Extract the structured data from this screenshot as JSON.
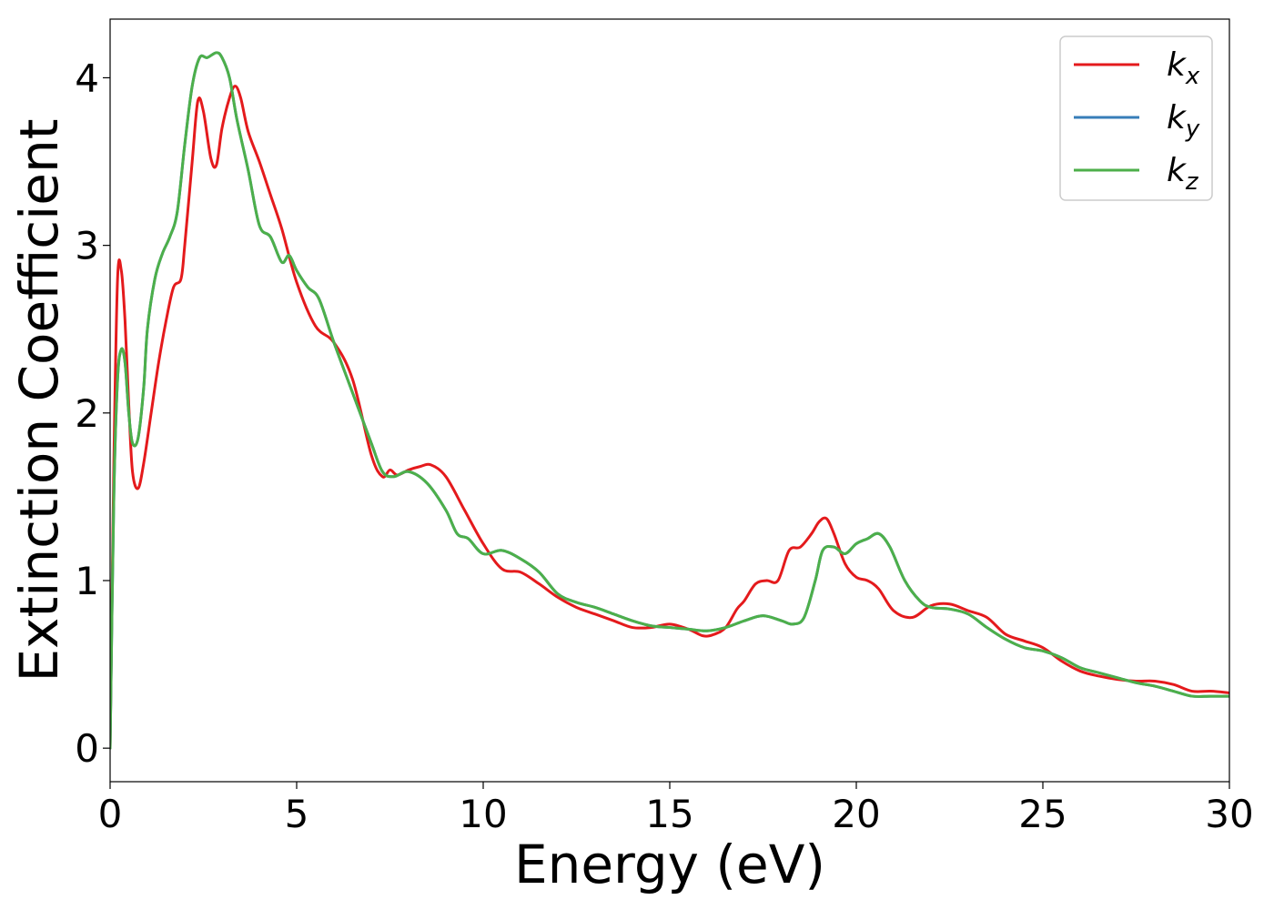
{
  "chart_data": {
    "type": "line",
    "xlabel": "Energy (eV)",
    "ylabel": "Extinction Coefficient",
    "xlim": [
      0,
      30
    ],
    "ylim": [
      -0.2,
      4.35
    ],
    "xticks": [
      0,
      5,
      10,
      15,
      20,
      25,
      30
    ],
    "yticks": [
      0,
      1,
      2,
      3,
      4
    ],
    "legend_position": "top-right",
    "grid": false,
    "series": [
      {
        "name": "k_x",
        "label_main": "k",
        "label_sub": "x",
        "color": "#e41a1c",
        "x": [
          0,
          0.1,
          0.2,
          0.3,
          0.4,
          0.5,
          0.6,
          0.75,
          0.9,
          1.1,
          1.3,
          1.5,
          1.7,
          1.9,
          2.0,
          2.2,
          2.35,
          2.5,
          2.7,
          2.85,
          3.0,
          3.2,
          3.35,
          3.5,
          3.7,
          4.0,
          4.3,
          4.6,
          5.0,
          5.5,
          6.0,
          6.5,
          7.0,
          7.3,
          7.5,
          7.7,
          8.0,
          8.3,
          8.6,
          9.0,
          9.5,
          10.0,
          10.5,
          11.0,
          11.5,
          12.0,
          12.5,
          13.0,
          13.5,
          14.0,
          14.5,
          15.0,
          15.5,
          15.9,
          16.2,
          16.5,
          16.8,
          17.0,
          17.3,
          17.6,
          17.9,
          18.2,
          18.5,
          18.8,
          19.0,
          19.2,
          19.4,
          19.7,
          20.0,
          20.3,
          20.6,
          21.0,
          21.5,
          22.0,
          22.5,
          23.0,
          23.5,
          24.0,
          24.5,
          25.0,
          25.5,
          26.0,
          26.5,
          27.0,
          27.5,
          28.0,
          28.5,
          29.0,
          29.5,
          30.0
        ],
        "y": [
          0.0,
          1.7,
          2.8,
          2.85,
          2.55,
          2.05,
          1.65,
          1.55,
          1.7,
          2.0,
          2.3,
          2.55,
          2.75,
          2.8,
          3.0,
          3.5,
          3.86,
          3.8,
          3.52,
          3.48,
          3.7,
          3.88,
          3.95,
          3.88,
          3.68,
          3.5,
          3.3,
          3.1,
          2.78,
          2.52,
          2.42,
          2.2,
          1.75,
          1.62,
          1.66,
          1.63,
          1.66,
          1.68,
          1.69,
          1.62,
          1.42,
          1.22,
          1.07,
          1.05,
          0.98,
          0.9,
          0.84,
          0.8,
          0.76,
          0.72,
          0.72,
          0.74,
          0.71,
          0.67,
          0.68,
          0.72,
          0.83,
          0.88,
          0.98,
          1.0,
          1.0,
          1.18,
          1.2,
          1.28,
          1.35,
          1.37,
          1.28,
          1.1,
          1.02,
          1.0,
          0.95,
          0.82,
          0.78,
          0.85,
          0.86,
          0.82,
          0.78,
          0.68,
          0.64,
          0.6,
          0.52,
          0.46,
          0.43,
          0.41,
          0.4,
          0.4,
          0.38,
          0.34,
          0.34,
          0.33
        ]
      },
      {
        "name": "k_y",
        "label_main": "k",
        "label_sub": "y",
        "color": "#377eb8",
        "x": [
          0,
          0.1,
          0.2,
          0.3,
          0.4,
          0.5,
          0.6,
          0.75,
          0.9,
          1.0,
          1.2,
          1.4,
          1.6,
          1.8,
          2.0,
          2.2,
          2.4,
          2.6,
          2.85,
          3.0,
          3.2,
          3.4,
          3.7,
          4.0,
          4.3,
          4.6,
          4.8,
          5.0,
          5.3,
          5.6,
          6.0,
          6.5,
          7.0,
          7.3,
          7.6,
          8.0,
          8.5,
          9.0,
          9.3,
          9.6,
          10.0,
          10.5,
          11.0,
          11.5,
          12.0,
          12.5,
          13.0,
          13.5,
          14.0,
          14.5,
          15.0,
          15.5,
          16.0,
          16.5,
          17.0,
          17.5,
          18.0,
          18.3,
          18.6,
          18.9,
          19.1,
          19.4,
          19.7,
          20.0,
          20.3,
          20.6,
          20.9,
          21.3,
          21.7,
          22.0,
          22.5,
          23.0,
          23.5,
          24.0,
          24.5,
          25.0,
          25.5,
          26.0,
          26.5,
          27.0,
          27.5,
          28.0,
          28.5,
          29.0,
          29.5,
          30.0
        ],
        "y": [
          0.0,
          1.5,
          2.2,
          2.38,
          2.3,
          2.0,
          1.82,
          1.85,
          2.15,
          2.5,
          2.8,
          2.95,
          3.05,
          3.2,
          3.6,
          3.95,
          4.12,
          4.12,
          4.15,
          4.12,
          4.0,
          3.75,
          3.45,
          3.12,
          3.05,
          2.9,
          2.94,
          2.85,
          2.75,
          2.68,
          2.42,
          2.12,
          1.82,
          1.65,
          1.62,
          1.65,
          1.58,
          1.42,
          1.28,
          1.25,
          1.16,
          1.18,
          1.13,
          1.05,
          0.92,
          0.87,
          0.84,
          0.8,
          0.76,
          0.73,
          0.72,
          0.71,
          0.7,
          0.72,
          0.76,
          0.79,
          0.76,
          0.74,
          0.78,
          1.0,
          1.18,
          1.2,
          1.16,
          1.22,
          1.25,
          1.28,
          1.2,
          1.0,
          0.88,
          0.84,
          0.83,
          0.8,
          0.72,
          0.65,
          0.6,
          0.58,
          0.54,
          0.48,
          0.45,
          0.42,
          0.39,
          0.37,
          0.34,
          0.31,
          0.31,
          0.31
        ]
      },
      {
        "name": "k_z",
        "label_main": "k",
        "label_sub": "z",
        "color": "#4daf4a",
        "x": [
          0,
          0.1,
          0.2,
          0.3,
          0.4,
          0.5,
          0.6,
          0.75,
          0.9,
          1.0,
          1.2,
          1.4,
          1.6,
          1.8,
          2.0,
          2.2,
          2.4,
          2.6,
          2.85,
          3.0,
          3.2,
          3.4,
          3.7,
          4.0,
          4.3,
          4.6,
          4.8,
          5.0,
          5.3,
          5.6,
          6.0,
          6.5,
          7.0,
          7.3,
          7.6,
          8.0,
          8.5,
          9.0,
          9.3,
          9.6,
          10.0,
          10.5,
          11.0,
          11.5,
          12.0,
          12.5,
          13.0,
          13.5,
          14.0,
          14.5,
          15.0,
          15.5,
          16.0,
          16.5,
          17.0,
          17.5,
          18.0,
          18.3,
          18.6,
          18.9,
          19.1,
          19.4,
          19.7,
          20.0,
          20.3,
          20.6,
          20.9,
          21.3,
          21.7,
          22.0,
          22.5,
          23.0,
          23.5,
          24.0,
          24.5,
          25.0,
          25.5,
          26.0,
          26.5,
          27.0,
          27.5,
          28.0,
          28.5,
          29.0,
          29.5,
          30.0
        ],
        "y": [
          0.0,
          1.5,
          2.2,
          2.38,
          2.3,
          2.0,
          1.82,
          1.85,
          2.15,
          2.5,
          2.8,
          2.95,
          3.05,
          3.2,
          3.6,
          3.95,
          4.12,
          4.12,
          4.15,
          4.12,
          4.0,
          3.75,
          3.45,
          3.12,
          3.05,
          2.9,
          2.94,
          2.85,
          2.75,
          2.68,
          2.42,
          2.12,
          1.82,
          1.65,
          1.62,
          1.65,
          1.58,
          1.42,
          1.28,
          1.25,
          1.16,
          1.18,
          1.13,
          1.05,
          0.92,
          0.87,
          0.84,
          0.8,
          0.76,
          0.73,
          0.72,
          0.71,
          0.7,
          0.72,
          0.76,
          0.79,
          0.76,
          0.74,
          0.78,
          1.0,
          1.18,
          1.2,
          1.16,
          1.22,
          1.25,
          1.28,
          1.2,
          1.0,
          0.88,
          0.84,
          0.83,
          0.8,
          0.72,
          0.65,
          0.6,
          0.58,
          0.54,
          0.48,
          0.45,
          0.42,
          0.39,
          0.37,
          0.34,
          0.31,
          0.31,
          0.31
        ]
      }
    ]
  }
}
